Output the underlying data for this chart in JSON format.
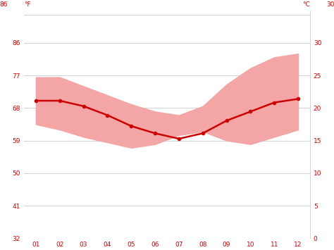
{
  "months": [
    1,
    2,
    3,
    4,
    5,
    6,
    7,
    8,
    9,
    10,
    11,
    12
  ],
  "month_labels": [
    "01",
    "02",
    "03",
    "04",
    "05",
    "06",
    "07",
    "08",
    "09",
    "10",
    "11",
    "12"
  ],
  "avg_temp_f": [
    70.0,
    70.0,
    68.5,
    66.0,
    63.0,
    61.0,
    59.5,
    61.0,
    64.5,
    67.0,
    69.5,
    70.5
  ],
  "max_temp_f": [
    76.5,
    76.5,
    74.0,
    71.5,
    69.0,
    67.0,
    66.0,
    68.5,
    74.5,
    79.0,
    82.0,
    83.0
  ],
  "min_temp_f": [
    63.5,
    62.0,
    60.0,
    58.5,
    57.0,
    58.0,
    60.5,
    61.5,
    59.0,
    58.0,
    60.0,
    62.0
  ],
  "yticks_f": [
    32,
    41,
    50,
    59,
    68,
    77,
    86
  ],
  "yticks_c": [
    0,
    5,
    10,
    15,
    20,
    25,
    30
  ],
  "ylim_f": [
    32,
    95
  ],
  "xlim": [
    0.5,
    12.5
  ],
  "background_color": "#ffffff",
  "fill_color": "#f4a5a5",
  "line_color": "#cc0000",
  "grid_color": "#cccccc",
  "label_color": "#cc0000",
  "figsize": [
    4.74,
    3.55
  ],
  "dpi": 100
}
